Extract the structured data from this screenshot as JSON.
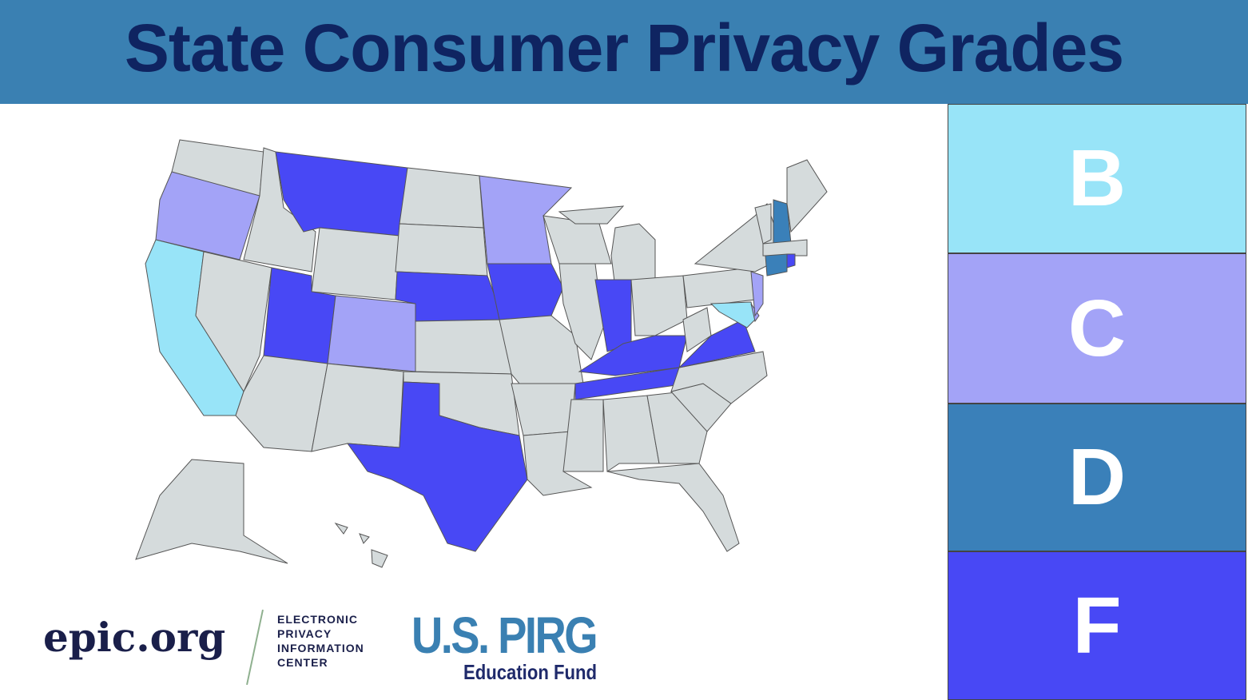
{
  "header": {
    "title": "State Consumer Privacy Grades"
  },
  "legend": [
    {
      "grade": "B",
      "color": "#98e4f8"
    },
    {
      "grade": "C",
      "color": "#a3a3f7"
    },
    {
      "grade": "D",
      "color": "#3a80b9"
    },
    {
      "grade": "F",
      "color": "#4848f5"
    }
  ],
  "map": {
    "default_color": "#d5dbdc"
  },
  "logos": {
    "epic": {
      "name": "epic.org",
      "lines": [
        "ELECTRONIC",
        "PRIVACY",
        "INFORMATION",
        "CENTER"
      ]
    },
    "pirg": {
      "name": "U.S. PIRG",
      "subtitle": "Education Fund"
    }
  }
}
